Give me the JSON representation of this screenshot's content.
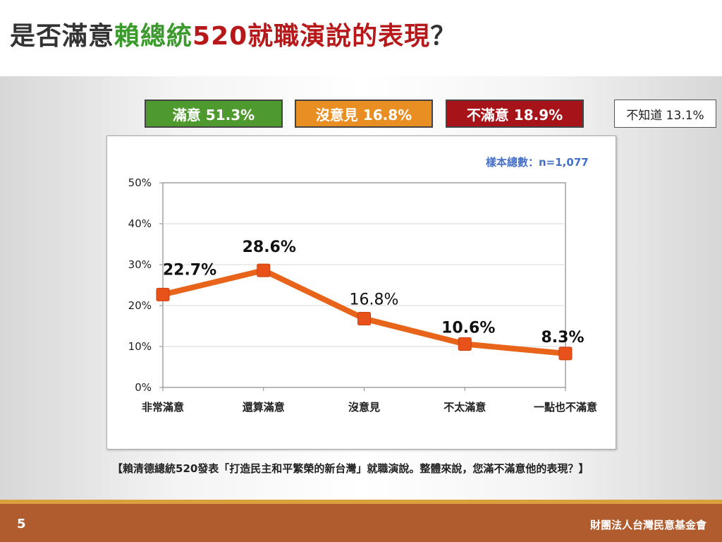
{
  "title": {
    "part1": "是否滿意",
    "part2": "賴總統",
    "part3": "520就職演說的表現",
    "part4": "？"
  },
  "summary": {
    "satisfied": "滿意 51.3%",
    "neutral": "沒意見 16.8%",
    "unsatisfied": "不滿意 18.9%",
    "dont_know": "不知道 13.1%"
  },
  "sample_size": "樣本總數：n=1,077",
  "question": "【賴清德總統520發表「打造民主和平繁榮的新台灣」就職演說。整體來說，您滿不滿意他的表現？】",
  "footer": {
    "page_number": "5",
    "organization": "財團法人台灣民意基金會"
  },
  "colors": {
    "line": "#e8641a",
    "marker": "#e8521a",
    "green": "#4f9a2e",
    "orange": "#e88e22",
    "red": "#a6141a"
  },
  "chart_data": {
    "type": "line",
    "categories": [
      "非常滿意",
      "還算滿意",
      "沒意見",
      "不太滿意",
      "一點也不滿意"
    ],
    "values": [
      22.7,
      28.6,
      16.8,
      10.6,
      8.3
    ],
    "data_labels": [
      "22.7%",
      "28.6%",
      "16.8%",
      "10.6%",
      "8.3%"
    ],
    "y_ticks": [
      "0%",
      "10%",
      "20%",
      "30%",
      "40%",
      "50%"
    ],
    "ylim": [
      0,
      50
    ],
    "grid": true,
    "legend": "none"
  }
}
